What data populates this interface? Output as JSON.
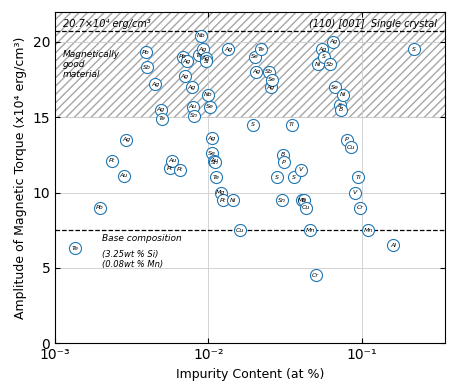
{
  "chart_data": {
    "type": "scatter",
    "xlabel": "Impurity Content (at %)",
    "ylabel": "Amplitude of Magnetic Torque (x10⁴ erg/cm³)",
    "log": "x",
    "grid": true,
    "xlim": [
      0.001,
      0.35
    ],
    "ylim": [
      0,
      22
    ],
    "xticks": [
      {
        "value": 0.001,
        "label": "10⁻³"
      },
      {
        "value": 0.01,
        "label": "10⁻²"
      },
      {
        "value": 0.1,
        "label": "10⁻¹"
      }
    ],
    "yticks": [
      0,
      5,
      10,
      15,
      20
    ],
    "region": {
      "ymin": 15.0,
      "ymax": 22,
      "label": "Magnetically\ngood\nmaterial"
    },
    "reference_lines": [
      {
        "y": 20.7,
        "line_style": "dashed",
        "labels": [
          "20.7×10⁴ erg/cm³",
          "(110) [001̄]  Single crystal"
        ]
      },
      {
        "y": 7.5,
        "line_style": "dashed",
        "labels": [
          "Base composition",
          "(3.25wt % Si)\n(0.08wt % Mn)"
        ]
      }
    ],
    "point_labels": [
      "Te",
      "Pb",
      "Pt",
      "Au",
      "Ag",
      "Pb",
      "Sb",
      "Ag",
      "Ag",
      "Te",
      "Pt",
      "Au",
      "Pt",
      "Pb",
      "Ag",
      "Ag",
      "Ag",
      "Au",
      "Sn",
      "Te",
      "Nb",
      "Ag",
      "Ag",
      "Si",
      "Nb",
      "Se",
      "Ag",
      "Se",
      "Au",
      "Sn",
      "Te",
      "Mg",
      "Pt",
      "Ag",
      "Ni",
      "Cu",
      "S",
      "Se",
      "Ag",
      "Te",
      "Sb",
      "Ag",
      "Se",
      "S",
      "Sn",
      "B",
      "P",
      "Ti",
      "S",
      "Mo",
      "Ti",
      "Cu",
      "V",
      "Mn",
      "Cr",
      "Ni",
      "Ag",
      "S",
      "Sb",
      "Ag",
      "Se",
      "S",
      "B",
      "Ni",
      "P",
      "Cu",
      "V",
      "Ti",
      "Cr",
      "Mn",
      "Al",
      "S"
    ],
    "x": [
      0.00135,
      0.00195,
      0.00235,
      0.0028,
      0.0029,
      0.0039,
      0.004,
      0.0045,
      0.0049,
      0.005,
      0.0056,
      0.0058,
      0.0065,
      0.0068,
      0.007,
      0.0072,
      0.0078,
      0.0079,
      0.0081,
      0.0087,
      0.0089,
      0.0092,
      0.0096,
      0.0097,
      0.01,
      0.0102,
      0.0105,
      0.0106,
      0.0109,
      0.011,
      0.0112,
      0.012,
      0.0125,
      0.0135,
      0.0145,
      0.016,
      0.0195,
      0.02,
      0.0205,
      0.022,
      0.025,
      0.0255,
      0.026,
      0.028,
      0.03,
      0.0305,
      0.031,
      0.035,
      0.036,
      0.041,
      0.042,
      0.043,
      0.04,
      0.046,
      0.05,
      0.052,
      0.055,
      0.057,
      0.062,
      0.065,
      0.067,
      0.072,
      0.073,
      0.075,
      0.08,
      0.085,
      0.09,
      0.095,
      0.098,
      0.11,
      0.16,
      0.22
    ],
    "values": [
      6.3,
      9.0,
      12.1,
      11.1,
      13.5,
      19.3,
      18.3,
      17.2,
      15.5,
      14.9,
      11.6,
      12.1,
      11.5,
      19.0,
      17.7,
      18.7,
      17.0,
      15.7,
      15.1,
      19.1,
      20.4,
      19.5,
      18.9,
      18.7,
      16.5,
      15.7,
      13.6,
      12.6,
      12.1,
      12.0,
      11.0,
      10.0,
      9.5,
      19.5,
      9.5,
      7.5,
      14.5,
      19.0,
      18.0,
      19.5,
      18.0,
      17.0,
      17.5,
      11.0,
      9.5,
      12.5,
      12.0,
      14.5,
      11.0,
      9.5,
      9.5,
      9.0,
      11.5,
      7.5,
      4.5,
      18.5,
      19.5,
      19.0,
      18.5,
      20.0,
      17.0,
      15.8,
      15.5,
      16.5,
      13.5,
      13.0,
      10.0,
      11.0,
      9.0,
      7.5,
      6.5,
      19.5
    ]
  }
}
